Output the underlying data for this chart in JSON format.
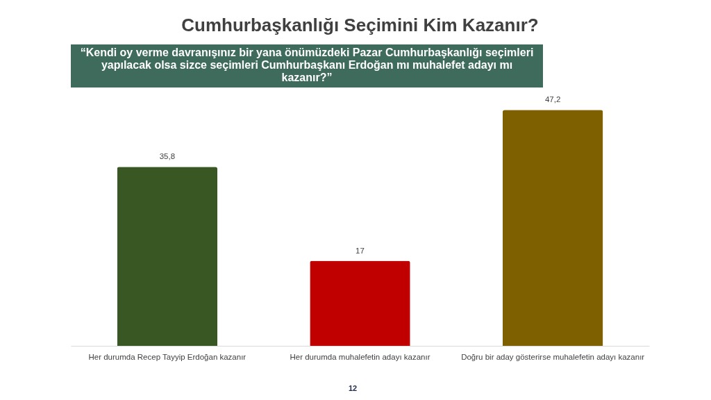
{
  "chart_data": {
    "type": "bar",
    "title": "Cumhurbaşkanlığı Seçimini Kim Kazanır?",
    "subtitle": "“Kendi oy verme davranışınız bir yana önümüzdeki Pazar Cumhurbaşkanlığı seçimleri\nyapılacak olsa sizce seçimleri Cumhurbaşkanı Erdoğan mı muhalefet adayı mı\nkazanır?”",
    "categories": [
      "Her durumda Recep Tayyip Erdoğan kazanır",
      "Her durumda muhalefetin adayı kazanır",
      "Doğru bir aday gösterirse muhalefetin adayı kazanır"
    ],
    "values": [
      35.8,
      17,
      47.2
    ],
    "colors": [
      "#385723",
      "#c00000",
      "#7f6000"
    ],
    "value_labels": [
      "35,8",
      "17",
      "47,2"
    ],
    "annotations": [
      "12"
    ],
    "tick_labels": "x",
    "grid": false,
    "legend": false
  }
}
